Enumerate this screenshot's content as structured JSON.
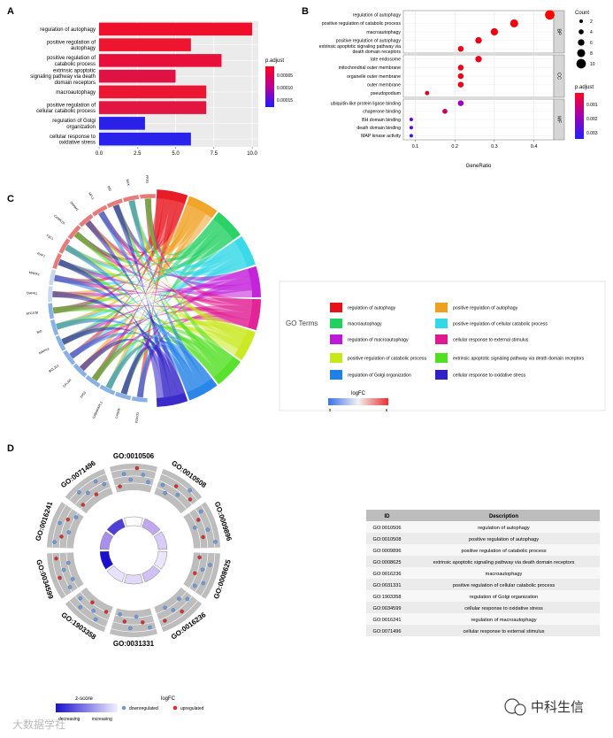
{
  "panels": {
    "a": "A",
    "b": "B",
    "c": "C",
    "d": "D"
  },
  "chart_data": [
    {
      "type": "bar",
      "panel": "A",
      "categories": [
        "regulation of autophagy",
        "positive regulation of|autophagy",
        "positive regulation of|catabolic process",
        "extrinsic apoptotic|signaling pathway via death|domain receptors",
        "macroautophagy",
        "positive regulation of|cellular catabolic process",
        "regulation of Golgi|organization",
        "cellular response to|oxidative stress"
      ],
      "values": [
        10,
        6,
        8,
        5,
        7,
        7,
        3,
        6
      ],
      "colors": [
        "#ee0f2c",
        "#ee1530",
        "#e8103a",
        "#e01244",
        "#ec1632",
        "#e21640",
        "#2b20e8",
        "#2a22ea"
      ],
      "xlim": [
        0,
        10.4
      ],
      "xticks": [
        0.0,
        2.5,
        5.0,
        7.5,
        10.0
      ],
      "xtick_labels": [
        "0.0",
        "2.5",
        "5.0",
        "7.5",
        "10.0"
      ],
      "legend": {
        "title": "p.adjust",
        "labels": [
          "0.00005",
          "0.00010",
          "0.00015"
        ],
        "colors": [
          "#ff0019",
          "#a000a8",
          "#1a1aff"
        ]
      }
    },
    {
      "type": "scatter",
      "panel": "B",
      "xlabel": "GeneRatio",
      "xlim": [
        0.07,
        0.45
      ],
      "xticks": [
        0.1,
        0.2,
        0.3,
        0.4
      ],
      "xtick_labels": [
        "0.1",
        "0.2",
        "0.3",
        "0.4"
      ],
      "facets": [
        {
          "name": "BP",
          "terms": [
            {
              "label": "regulation of autophagy",
              "ratio": 0.44,
              "count": 10,
              "color": "#ff0000"
            },
            {
              "label": "positive regulation of catabolic process",
              "ratio": 0.35,
              "count": 8,
              "color": "#f50010"
            },
            {
              "label": "macroautophagy",
              "ratio": 0.3,
              "count": 7,
              "color": "#f20012"
            },
            {
              "label": "positive regulation of autophagy",
              "ratio": 0.26,
              "count": 6,
              "color": "#f00014"
            },
            {
              "label": "extrinsic apoptotic signaling pathway via|death domain receptors",
              "ratio": 0.215,
              "count": 5,
              "color": "#ee0016"
            }
          ]
        },
        {
          "name": "CC",
          "terms": [
            {
              "label": "late endosome",
              "ratio": 0.26,
              "count": 6,
              "color": "#ee0016"
            },
            {
              "label": "mitochondrial outer membrane",
              "ratio": 0.215,
              "count": 5,
              "color": "#ee0016"
            },
            {
              "label": "organelle outer membrane",
              "ratio": 0.215,
              "count": 5,
              "color": "#ee0016"
            },
            {
              "label": "outer membrane",
              "ratio": 0.215,
              "count": 5,
              "color": "#ee0016"
            },
            {
              "label": "pseudopodium",
              "ratio": 0.13,
              "count": 3,
              "color": "#e0001e"
            }
          ]
        },
        {
          "name": "MF",
          "terms": [
            {
              "label": "ubiquitin-like protein ligase binding",
              "ratio": 0.215,
              "count": 5,
              "color": "#a000b8"
            },
            {
              "label": "chaperone binding",
              "ratio": 0.175,
              "count": 4,
              "color": "#c40060"
            },
            {
              "label": "BH domain binding",
              "ratio": 0.09,
              "count": 2,
              "color": "#6a00d0"
            },
            {
              "label": "death domain binding",
              "ratio": 0.09,
              "count": 2,
              "color": "#6000d8"
            },
            {
              "label": "MAP kinase activity",
              "ratio": 0.09,
              "count": 2,
              "color": "#3a1af0"
            }
          ]
        }
      ],
      "size_legend": {
        "title": "Count",
        "labels": [
          "2",
          "4",
          "6",
          "8",
          "10"
        ],
        "values": [
          2,
          4,
          6,
          8,
          10
        ]
      },
      "color_legend": {
        "title": "p.adjust",
        "labels": [
          "0.001",
          "0.002",
          "0.003"
        ]
      }
    },
    {
      "type": "chord",
      "panel": "C",
      "genes": [
        "FRS1",
        "BAX",
        "BID",
        "NFL1",
        "DRAM1",
        "CAMK2A",
        "TSC1",
        "RAF1",
        "MAPK1",
        "DAPK1",
        "ATG10B",
        "BID",
        "MAPK3",
        "BCL2L1",
        "CFLAR",
        "TP53",
        "GABARAPL1",
        "CASP8",
        "FOXO3"
      ],
      "legend_title": "GO Terms",
      "terms": [
        {
          "label": "regulation of autophagy",
          "color": "#e8101a"
        },
        {
          "label": "positive regulation of autophagy",
          "color": "#f0a020"
        },
        {
          "label": "macroautophagy",
          "color": "#20d060"
        },
        {
          "label": "positive regulation of cellular catabolic process",
          "color": "#30d8e8"
        },
        {
          "label": "regulation of macroautophagy",
          "color": "#c018d8"
        },
        {
          "label": "cellular response to external stimulus",
          "color": "#e01890"
        },
        {
          "label": "positive regulation of catabolic process",
          "color": "#c8e818"
        },
        {
          "label": "extrinsic apoptotic signaling pathway via death domain receptors",
          "color": "#50e020"
        },
        {
          "label": "regulation of Golgi organization",
          "color": "#2080e8"
        },
        {
          "label": "cellular response to oxidative stress",
          "color": "#3020c8"
        }
      ],
      "logfc": {
        "title": "logFC",
        "labels": [
          "0",
          "6"
        ]
      }
    },
    {
      "type": "table",
      "panel": "D",
      "circle_terms": [
        "GO:0010506",
        "GO:0010508",
        "GO:0009896",
        "GO:0008625",
        "GO:0016236",
        "GO:0031331",
        "GO:1903358",
        "GO:0034599",
        "GO:0016241",
        "GO:0071496"
      ],
      "zscore_title": "z-score",
      "zscore_labels": [
        "decreasing",
        "increasing"
      ],
      "logfc_title": "logFC",
      "logfc_labels": [
        "downregulated",
        "upregulated"
      ],
      "columns": [
        "ID",
        "Description"
      ],
      "rows": [
        [
          "GO:0010506",
          "regulation of autophagy"
        ],
        [
          "GO:0010508",
          "positive regulation of autophagy"
        ],
        [
          "GO:0009896",
          "positive regulation of catabolic process"
        ],
        [
          "GO:0008625",
          "extrinsic apoptotic signaling pathway via death domain receptors"
        ],
        [
          "GO:0016236",
          "macroautophagy"
        ],
        [
          "GO:0031331",
          "positive regulation of cellular catabolic process"
        ],
        [
          "GO:1903358",
          "regulation of Golgi organization"
        ],
        [
          "GO:0034599",
          "cellular response to oxidative stress"
        ],
        [
          "GO:0016241",
          "regulation of macroautophagy"
        ],
        [
          "GO:0071496",
          "cellular response to external stimulus"
        ]
      ]
    }
  ],
  "watermark": {
    "left": "大数据学社",
    "right": "中科生信"
  }
}
